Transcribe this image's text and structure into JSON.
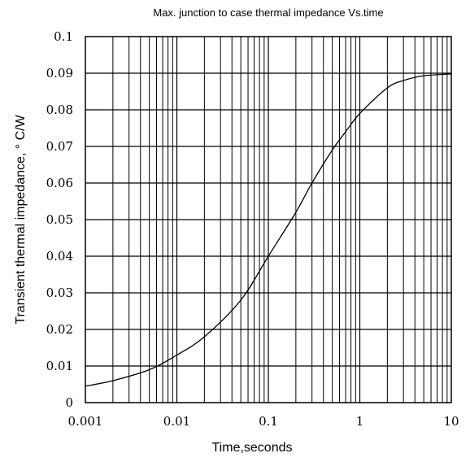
{
  "chart_data": {
    "type": "line",
    "title": "Max. junction to case thermal impedance Vs.time",
    "xlabel": "Time,seconds",
    "ylabel": "Transient thermal impedance, ° C/W",
    "xscale": "log",
    "xlim": [
      0.001,
      10
    ],
    "ylim": [
      0,
      0.1
    ],
    "grid": true,
    "x_tick_labels": [
      "0.001",
      "0.01",
      "0.1",
      "1",
      "10"
    ],
    "y_tick_labels": [
      "0",
      "0.01",
      "0.02",
      "0.03",
      "0.04",
      "0.05",
      "0.06",
      "0.07",
      "0.08",
      "0.09",
      "0.1"
    ],
    "series": [
      {
        "x": [
          0.001,
          0.002,
          0.005,
          0.01,
          0.02,
          0.05,
          0.1,
          0.2,
          0.3,
          0.5,
          0.7,
          1,
          2,
          3,
          5,
          10
        ],
        "y": [
          0.0045,
          0.006,
          0.009,
          0.013,
          0.018,
          0.028,
          0.04,
          0.052,
          0.06,
          0.069,
          0.074,
          0.079,
          0.086,
          0.088,
          0.0893,
          0.0898
        ]
      }
    ]
  }
}
